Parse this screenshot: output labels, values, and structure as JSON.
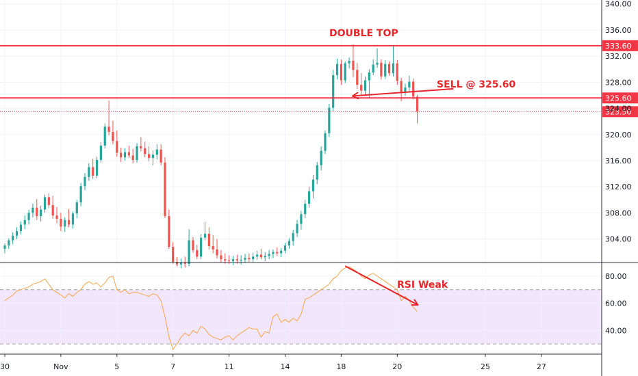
{
  "chart_data": [
    {
      "type": "candlestick",
      "y_ticks": [
        304,
        308,
        312,
        316,
        320,
        324,
        328,
        332,
        336,
        340
      ],
      "y_tick_labels": [
        "304.00",
        "308.00",
        "312.00",
        "316.00",
        "320.00",
        "324.00",
        "328.00",
        "332.00",
        "336.00",
        "340.00"
      ],
      "ylim": [
        300.5,
        340.6
      ],
      "grid": true,
      "x_ticks": [
        {
          "label": "30",
          "bar": 0
        },
        {
          "label": "Nov",
          "bar": 14
        },
        {
          "label": "5",
          "bar": 28
        },
        {
          "label": "7",
          "bar": 42
        },
        {
          "label": "11",
          "bar": 56
        },
        {
          "label": "14",
          "bar": 70
        },
        {
          "label": "18",
          "bar": 84
        },
        {
          "label": "20",
          "bar": 98
        },
        {
          "label": "25",
          "bar": 120
        },
        {
          "label": "27",
          "bar": 134
        }
      ],
      "candles": [
        [
          302.5,
          303.3,
          301.8,
          303.0
        ],
        [
          303.0,
          304.1,
          302.5,
          303.8
        ],
        [
          303.8,
          305.0,
          303.2,
          304.5
        ],
        [
          304.5,
          305.8,
          304.0,
          305.2
        ],
        [
          305.2,
          306.7,
          304.7,
          306.2
        ],
        [
          306.2,
          307.6,
          305.5,
          306.9
        ],
        [
          306.9,
          308.5,
          306.2,
          308.0
        ],
        [
          308.0,
          309.4,
          307.3,
          308.8
        ],
        [
          308.8,
          310.1,
          306.9,
          307.5
        ],
        [
          307.5,
          309.1,
          306.7,
          308.5
        ],
        [
          308.5,
          310.8,
          308.0,
          310.4
        ],
        [
          310.4,
          311.0,
          308.7,
          309.2
        ],
        [
          309.2,
          310.6,
          307.1,
          307.6
        ],
        [
          307.6,
          308.9,
          306.4,
          307.1
        ],
        [
          307.1,
          308.0,
          305.2,
          305.9
        ],
        [
          305.9,
          307.3,
          305.1,
          306.9
        ],
        [
          306.9,
          308.6,
          305.8,
          306.2
        ],
        [
          306.2,
          308.2,
          305.6,
          307.9
        ],
        [
          307.9,
          310.0,
          307.2,
          309.6
        ],
        [
          309.6,
          312.6,
          309.0,
          312.1
        ],
        [
          312.1,
          314.1,
          311.5,
          313.5
        ],
        [
          313.5,
          315.6,
          312.9,
          315.0
        ],
        [
          315.0,
          316.3,
          313.2,
          313.7
        ],
        [
          313.7,
          316.6,
          313.3,
          316.1
        ],
        [
          316.1,
          318.8,
          315.7,
          318.3
        ],
        [
          318.3,
          321.7,
          317.9,
          321.2
        ],
        [
          321.2,
          325.2,
          319.9,
          320.4
        ],
        [
          320.4,
          322.1,
          318.5,
          319.0
        ],
        [
          319.0,
          320.6,
          316.6,
          317.2
        ],
        [
          317.2,
          318.0,
          315.8,
          316.5
        ],
        [
          316.5,
          317.9,
          316.0,
          317.3
        ],
        [
          317.3,
          318.3,
          316.4,
          316.8
        ],
        [
          316.8,
          317.8,
          315.6,
          316.1
        ],
        [
          316.1,
          318.7,
          315.7,
          318.2
        ],
        [
          318.2,
          319.6,
          317.4,
          317.9
        ],
        [
          317.9,
          318.9,
          316.5,
          317.0
        ],
        [
          317.0,
          318.2,
          315.9,
          316.4
        ],
        [
          316.4,
          317.6,
          315.3,
          316.9
        ],
        [
          316.9,
          318.5,
          316.2,
          317.7
        ],
        [
          317.7,
          318.5,
          315.3,
          315.7
        ],
        [
          315.7,
          316.5,
          307.2,
          307.5
        ],
        [
          307.5,
          308.5,
          302.5,
          302.8
        ],
        [
          302.8,
          303.5,
          300.2,
          300.5
        ],
        [
          300.5,
          301.2,
          299.8,
          300.1
        ],
        [
          300.1,
          301.0,
          299.5,
          300.4
        ],
        [
          300.4,
          301.3,
          299.6,
          300.2
        ],
        [
          300.2,
          305.5,
          299.8,
          303.8
        ],
        [
          303.8,
          304.3,
          301.9,
          302.3
        ],
        [
          302.3,
          303.1,
          300.9,
          301.3
        ],
        [
          301.3,
          304.7,
          300.9,
          304.2
        ],
        [
          304.2,
          306.6,
          303.8,
          304.8
        ],
        [
          304.8,
          305.8,
          302.4,
          302.9
        ],
        [
          302.9,
          304.6,
          301.8,
          302.4
        ],
        [
          302.4,
          304.0,
          301.0,
          301.5
        ],
        [
          301.5,
          302.3,
          300.4,
          300.9
        ],
        [
          300.9,
          301.8,
          300.2,
          300.7
        ],
        [
          300.7,
          301.5,
          300.1,
          300.6
        ],
        [
          300.6,
          301.4,
          300.0,
          300.9
        ],
        [
          300.9,
          301.6,
          300.2,
          300.7
        ],
        [
          300.7,
          301.5,
          300.1,
          300.8
        ],
        [
          300.8,
          301.7,
          300.3,
          301.1
        ],
        [
          301.1,
          301.8,
          300.5,
          300.9
        ],
        [
          300.9,
          301.9,
          300.4,
          301.3
        ],
        [
          301.3,
          302.2,
          300.8,
          301.6
        ],
        [
          301.6,
          302.5,
          300.9,
          301.2
        ],
        [
          301.2,
          302.0,
          300.6,
          301.4
        ],
        [
          301.4,
          302.3,
          300.9,
          301.7
        ],
        [
          301.7,
          302.4,
          301.1,
          302.0
        ],
        [
          302.0,
          302.7,
          301.4,
          301.8
        ],
        [
          301.8,
          302.6,
          301.2,
          302.2
        ],
        [
          302.2,
          303.4,
          301.8,
          303.0
        ],
        [
          303.0,
          304.1,
          302.5,
          303.7
        ],
        [
          303.7,
          305.4,
          303.0,
          304.9
        ],
        [
          304.9,
          306.9,
          304.3,
          306.3
        ],
        [
          306.3,
          308.3,
          305.4,
          307.8
        ],
        [
          307.8,
          310.0,
          307.2,
          309.4
        ],
        [
          309.4,
          312.0,
          308.8,
          311.3
        ],
        [
          311.3,
          313.8,
          310.2,
          313.1
        ],
        [
          313.1,
          315.8,
          312.4,
          315.3
        ],
        [
          315.3,
          318.2,
          314.5,
          317.5
        ],
        [
          317.5,
          320.6,
          317.0,
          320.2
        ],
        [
          320.2,
          324.7,
          319.6,
          324.1
        ],
        [
          324.1,
          329.9,
          323.6,
          329.1
        ],
        [
          329.1,
          331.6,
          328.4,
          330.8
        ],
        [
          330.8,
          331.5,
          327.6,
          328.3
        ],
        [
          328.3,
          331.2,
          327.9,
          330.9
        ],
        [
          330.9,
          331.8,
          330.1,
          331.3
        ],
        [
          331.3,
          333.8,
          328.8,
          329.9
        ],
        [
          329.9,
          331.0,
          327.0,
          327.6
        ],
        [
          327.6,
          329.4,
          326.0,
          326.7
        ],
        [
          326.7,
          328.9,
          326.1,
          328.3
        ],
        [
          328.3,
          330.0,
          325.5,
          329.5
        ],
        [
          329.5,
          331.5,
          329.1,
          330.7
        ],
        [
          330.7,
          333.2,
          330.2,
          331.0
        ],
        [
          331.0,
          331.5,
          328.4,
          328.9
        ],
        [
          328.9,
          331.4,
          328.5,
          330.8
        ],
        [
          330.8,
          331.2,
          329.0,
          329.4
        ],
        [
          329.4,
          333.7,
          328.9,
          330.9
        ],
        [
          330.9,
          331.4,
          327.6,
          328.2
        ],
        [
          328.2,
          328.7,
          325.1,
          326.4
        ],
        [
          326.4,
          327.8,
          325.9,
          327.2
        ],
        [
          327.2,
          329.0,
          326.4,
          328.1
        ],
        [
          328.1,
          328.6,
          325.4,
          325.8
        ],
        [
          325.8,
          326.1,
          321.7,
          323.5
        ]
      ],
      "up_color": "#26a69a",
      "down_color": "#ef5350",
      "horizontal_lines": [
        {
          "value": 333.6,
          "label": "333.60",
          "style": "solid",
          "color": "#f23645"
        },
        {
          "value": 325.6,
          "label": "325.60",
          "style": "solid",
          "color": "#f23645"
        },
        {
          "value": 323.5,
          "label": "323.50",
          "style": "dotted",
          "color": "#f23645"
        }
      ],
      "annotations": [
        {
          "text": "DOUBLE TOP",
          "color": "#f23645"
        },
        {
          "text": "SELL @ 325.60",
          "color": "#f23645"
        }
      ],
      "arrow_sell": {
        "from": {
          "bar": 112,
          "value": 327.0
        },
        "to": {
          "bar": 87,
          "value": 325.9
        }
      }
    },
    {
      "type": "line",
      "series_color": "#f7a54b",
      "y_ticks": [
        40,
        60,
        80
      ],
      "y_tick_labels": [
        "40.00",
        "60.00",
        "80.00"
      ],
      "ylim": [
        23,
        89
      ],
      "band": [
        30,
        70
      ],
      "band_color": "#e9d9fb",
      "values": [
        62,
        64,
        66,
        69,
        70,
        71,
        72,
        74,
        75,
        76,
        78,
        74,
        70,
        68,
        66,
        64,
        67,
        65,
        68,
        70,
        74,
        76,
        74,
        75,
        72,
        75,
        79,
        80,
        70,
        68,
        70,
        67,
        68,
        68,
        67,
        66,
        65,
        67,
        66,
        62,
        50,
        35,
        26,
        30,
        35,
        38,
        36,
        40,
        38,
        43,
        41,
        37,
        35,
        34,
        33,
        35,
        36,
        33,
        36,
        38,
        40,
        42,
        41,
        41,
        35,
        39,
        38,
        50,
        52,
        46,
        48,
        46,
        49,
        47,
        52,
        63,
        64,
        66,
        68,
        70,
        72,
        74,
        78,
        80,
        84,
        86,
        87,
        85,
        83,
        80,
        78,
        81,
        82,
        80,
        78,
        76,
        74,
        72,
        70,
        62,
        65,
        62,
        57,
        54
      ],
      "annotation": {
        "text": "RSI Weak",
        "color": "#f23645"
      },
      "arrow_rsi": {
        "from": {
          "bar": 85,
          "value": 87.4
        },
        "to": {
          "bar": 103,
          "value": 59.0
        }
      }
    }
  ]
}
